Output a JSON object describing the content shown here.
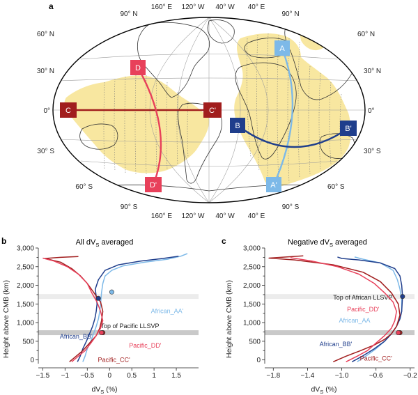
{
  "panels": {
    "a": {
      "letter": "a",
      "lon_top": [
        "160° E",
        "120° W",
        "40° W",
        "40° E"
      ],
      "lon_bottom": [
        "160° E",
        "120° W",
        "40° W",
        "40° E"
      ],
      "pole_n": "90° N",
      "pole_s": "90° S",
      "lat_left": [
        "60° N",
        "30° N",
        "0°",
        "30° S",
        "60° S"
      ],
      "lat_right": [
        "60° N",
        "30° N",
        "0°",
        "30° S",
        "60° S"
      ],
      "profiles": [
        {
          "start": "A",
          "end": "A'",
          "color": "#7db9e8"
        },
        {
          "start": "B",
          "end": "B'",
          "color": "#1f3e8c"
        },
        {
          "start": "C",
          "end": "C'",
          "color": "#a11d1d"
        },
        {
          "start": "D",
          "end": "D'",
          "color": "#e8405a"
        }
      ],
      "colors": {
        "llsvp": "#f8e7a0",
        "coast": "#333333",
        "grid": "#9a9a9a"
      }
    }
  },
  "chart_data": [
    {
      "panel": "b",
      "type": "line",
      "title": "All dV",
      "title_sub": "S",
      "title_tail": " averaged",
      "xlabel": "dV",
      "xlabel_sub": "S",
      "xlabel_tail": " (%)",
      "ylabel": "Height above CMB (km)",
      "xlim": [
        -1.6,
        2.0
      ],
      "ylim": [
        -100,
        3000
      ],
      "xticks": [
        -1.5,
        -1,
        -0.5,
        0,
        0.5,
        1,
        1.5
      ],
      "xtick_labels": [
        "−1.5",
        "−1",
        "−0.5",
        "0",
        "0.5",
        "1",
        "1.5"
      ],
      "yticks": [
        0,
        250,
        500,
        750,
        1000,
        1250,
        1500,
        1750,
        2000,
        2250,
        2500,
        2750,
        3000
      ],
      "ytick_labels": [
        "0",
        "",
        "500",
        "",
        "1,000",
        "",
        "1,500",
        "",
        "2,000",
        "",
        "2,500",
        "",
        "3,000"
      ],
      "band_label": "Top of Pacific LLSVP",
      "bands": [
        {
          "y": 1700,
          "color": "#ececec"
        },
        {
          "y": 730,
          "color": "#c9c9c9"
        }
      ],
      "series": [
        {
          "name": "African_AA'",
          "color": "#7db9e8",
          "x": [
            -0.6,
            -0.55,
            -0.5,
            -0.42,
            -0.36,
            -0.3,
            -0.25,
            -0.22,
            -0.2,
            -0.18,
            -0.15,
            -0.1,
            0.05,
            0.3,
            0.8,
            1.3,
            1.6,
            1.75
          ],
          "y": [
            -50,
            100,
            300,
            500,
            700,
            900,
            1100,
            1300,
            1500,
            1800,
            2050,
            2250,
            2400,
            2520,
            2620,
            2700,
            2780,
            2850
          ],
          "marker": {
            "x": 0.05,
            "y": 1820
          }
        },
        {
          "name": "African_BB'",
          "color": "#1f3e8c",
          "x": [
            -0.72,
            -0.66,
            -0.6,
            -0.52,
            -0.45,
            -0.38,
            -0.33,
            -0.3,
            -0.28,
            -0.3,
            -0.32,
            -0.25,
            -0.1,
            0.2,
            0.7,
            1.2,
            1.55
          ],
          "y": [
            -50,
            100,
            300,
            500,
            700,
            900,
            1100,
            1300,
            1500,
            1700,
            1900,
            2150,
            2400,
            2550,
            2650,
            2720,
            2780
          ],
          "marker": {
            "x": -0.25,
            "y": 1650
          }
        },
        {
          "name": "Pacific_CC'",
          "color": "#a11d1d",
          "x": [
            -0.9,
            -0.75,
            -0.6,
            -0.45,
            -0.3,
            -0.22,
            -0.18,
            -0.15,
            -0.2,
            -0.35,
            -0.5,
            -0.65,
            -0.85,
            -1.1,
            -1.45,
            -1.1,
            -0.7
          ],
          "y": [
            -50,
            100,
            250,
            450,
            650,
            850,
            1050,
            1300,
            1550,
            1800,
            2050,
            2250,
            2450,
            2620,
            2720,
            2750,
            2770
          ],
          "marker": {
            "x": -0.15,
            "y": 730
          }
        },
        {
          "name": "Pacific_DD'",
          "color": "#e8405a",
          "x": [
            -0.85,
            -0.7,
            -0.55,
            -0.42,
            -0.3,
            -0.2,
            -0.15,
            -0.2,
            -0.28,
            -0.4,
            -0.5,
            -0.7,
            -0.95,
            -1.25,
            -1.5
          ],
          "y": [
            -50,
            100,
            250,
            450,
            650,
            850,
            1050,
            1300,
            1550,
            1800,
            2050,
            2300,
            2500,
            2650,
            2730
          ],
          "marker": {
            "x": -0.18,
            "y": 730
          }
        }
      ]
    },
    {
      "panel": "c",
      "type": "line",
      "title": "Negative dV",
      "title_sub": "S",
      "title_tail": " averaged",
      "xlabel": "dV",
      "xlabel_sub": "S",
      "xlabel_tail": " (%)",
      "ylabel": "Height above CMB (km)",
      "xlim": [
        -1.9,
        -0.15
      ],
      "ylim": [
        -100,
        3000
      ],
      "xticks": [
        -1.8,
        -1.4,
        -1.0,
        -0.6,
        -0.2
      ],
      "xtick_labels": [
        "−1.8",
        "−1.4",
        "−1.0",
        "−0.6",
        "−0.2"
      ],
      "yticks": [
        0,
        250,
        500,
        750,
        1000,
        1250,
        1500,
        1750,
        2000,
        2250,
        2500,
        2750,
        3000
      ],
      "ytick_labels": [
        "0",
        "",
        "500",
        "",
        "1,000",
        "",
        "1,500",
        "",
        "2,000",
        "",
        "2,500",
        "",
        "3,000"
      ],
      "band_label": "Top of African LLSVP",
      "bands": [
        {
          "y": 1700,
          "color": "#ececec"
        },
        {
          "y": 730,
          "color": "#c9c9c9"
        }
      ],
      "series": [
        {
          "name": "African_AA",
          "color": "#7db9e8",
          "x": [
            -0.82,
            -0.72,
            -0.6,
            -0.5,
            -0.42,
            -0.36,
            -0.32,
            -0.3,
            -0.3,
            -0.32,
            -0.35,
            -0.4,
            -0.55,
            -0.75,
            -0.85
          ],
          "y": [
            -50,
            100,
            300,
            500,
            700,
            900,
            1100,
            1300,
            1600,
            1900,
            2150,
            2400,
            2600,
            2700,
            2760
          ],
          "marker": null
        },
        {
          "name": "African_BB'",
          "color": "#1f3e8c",
          "x": [
            -0.88,
            -0.76,
            -0.62,
            -0.5,
            -0.42,
            -0.36,
            -0.32,
            -0.3,
            -0.29,
            -0.3,
            -0.32,
            -0.38,
            -0.55,
            -0.8,
            -1.0,
            -1.05
          ],
          "y": [
            -50,
            100,
            300,
            500,
            700,
            900,
            1100,
            1300,
            1700,
            2000,
            2250,
            2450,
            2600,
            2680,
            2720,
            2760
          ],
          "marker": {
            "x": -0.29,
            "y": 1700
          }
        },
        {
          "name": "Pacific_CC'",
          "color": "#a11d1d",
          "x": [
            -1.1,
            -0.95,
            -0.78,
            -0.62,
            -0.5,
            -0.42,
            -0.36,
            -0.32,
            -0.34,
            -0.42,
            -0.55,
            -0.75,
            -1.1,
            -1.55,
            -1.85,
            -1.45
          ],
          "y": [
            -50,
            100,
            250,
            400,
            550,
            700,
            900,
            1200,
            1500,
            1800,
            2100,
            2350,
            2550,
            2680,
            2730,
            2790
          ],
          "marker": {
            "x": -0.32,
            "y": 730
          }
        },
        {
          "name": "Pacific_DD'",
          "color": "#e8405a",
          "x": [
            -0.95,
            -0.82,
            -0.7,
            -0.6,
            -0.5,
            -0.42,
            -0.38,
            -0.36,
            -0.4,
            -0.5,
            -0.62,
            -0.8,
            -1.05,
            -1.35,
            -1.6
          ],
          "y": [
            -50,
            100,
            250,
            450,
            650,
            850,
            1050,
            1300,
            1550,
            1800,
            2050,
            2300,
            2500,
            2650,
            2740
          ],
          "marker": {
            "x": -0.34,
            "y": 730
          }
        }
      ]
    }
  ]
}
